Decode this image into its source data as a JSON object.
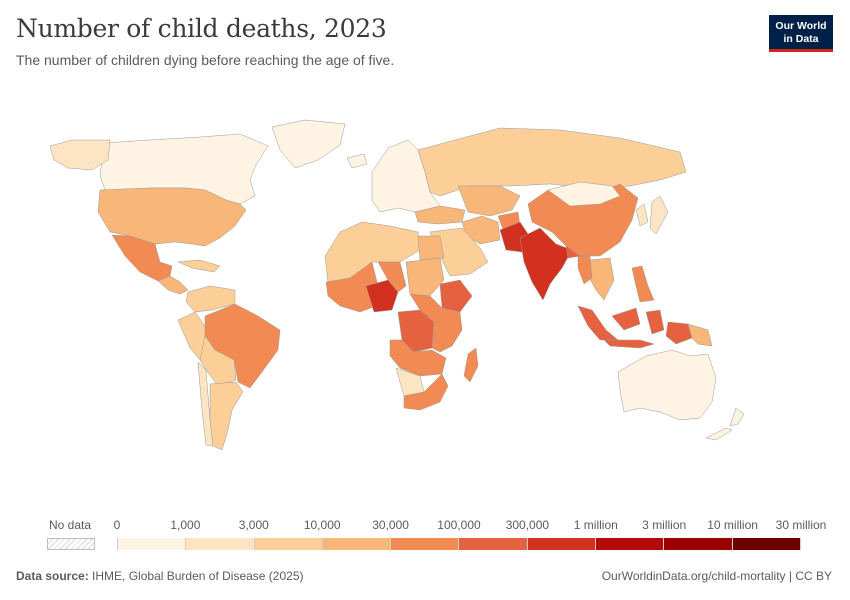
{
  "header": {
    "title": "Number of child deaths, 2023",
    "subtitle": "The number of children dying before reaching the age of five.",
    "logo_line1": "Our World",
    "logo_line2": "in Data"
  },
  "colors": {
    "bins": [
      "#fff3e3",
      "#fde5c4",
      "#fbcf97",
      "#f8b679",
      "#f18b53",
      "#e5613f",
      "#d2311f",
      "#b50a0a",
      "#9a0000",
      "#6e0000"
    ],
    "no_data": "#e6e6e6",
    "ocean": "#ffffff",
    "logo_bg": "#002147",
    "logo_accent": "#ce261e"
  },
  "legend": {
    "no_data_label": "No data",
    "tick_labels": [
      "0",
      "1,000",
      "3,000",
      "10,000",
      "30,000",
      "100,000",
      "300,000",
      "1 million",
      "3 million",
      "10 million",
      "30 million"
    ]
  },
  "map": {
    "regions": [
      {
        "name": "canada",
        "bin": 0
      },
      {
        "name": "alaska",
        "bin": 1
      },
      {
        "name": "greenland",
        "bin": 0
      },
      {
        "name": "united-states",
        "bin": 3
      },
      {
        "name": "mexico",
        "bin": 4
      },
      {
        "name": "central-america",
        "bin": 3
      },
      {
        "name": "caribbean",
        "bin": 2
      },
      {
        "name": "colombia-venezuela",
        "bin": 2
      },
      {
        "name": "peru",
        "bin": 2
      },
      {
        "name": "brazil",
        "bin": 4
      },
      {
        "name": "bolivia-paraguay",
        "bin": 2
      },
      {
        "name": "argentina",
        "bin": 2
      },
      {
        "name": "chile",
        "bin": 1
      },
      {
        "name": "iceland",
        "bin": 0
      },
      {
        "name": "europe",
        "bin": 0
      },
      {
        "name": "russia",
        "bin": 2
      },
      {
        "name": "turkey-caucasus",
        "bin": 3
      },
      {
        "name": "central-asia",
        "bin": 3
      },
      {
        "name": "iran",
        "bin": 3
      },
      {
        "name": "arabia",
        "bin": 2
      },
      {
        "name": "afghanistan",
        "bin": 4
      },
      {
        "name": "pakistan",
        "bin": 6
      },
      {
        "name": "india",
        "bin": 6
      },
      {
        "name": "bangladesh",
        "bin": 5
      },
      {
        "name": "china",
        "bin": 4
      },
      {
        "name": "mongolia",
        "bin": 0
      },
      {
        "name": "korea-japan",
        "bin": 1
      },
      {
        "name": "mainland-southeast-asia",
        "bin": 3
      },
      {
        "name": "myanmar",
        "bin": 4
      },
      {
        "name": "philippines",
        "bin": 4
      },
      {
        "name": "indonesia",
        "bin": 5
      },
      {
        "name": "papua-new-guinea",
        "bin": 3
      },
      {
        "name": "australia",
        "bin": 0
      },
      {
        "name": "new-zealand",
        "bin": 0
      },
      {
        "name": "north-africa",
        "bin": 2
      },
      {
        "name": "egypt",
        "bin": 3
      },
      {
        "name": "west-africa-sahel",
        "bin": 4
      },
      {
        "name": "nigeria",
        "bin": 6
      },
      {
        "name": "chad",
        "bin": 4
      },
      {
        "name": "sudan",
        "bin": 3
      },
      {
        "name": "ethiopia",
        "bin": 5
      },
      {
        "name": "dr-congo",
        "bin": 5
      },
      {
        "name": "east-africa",
        "bin": 4
      },
      {
        "name": "angola-zambia",
        "bin": 4
      },
      {
        "name": "namibia-botswana",
        "bin": 1
      },
      {
        "name": "southern-africa",
        "bin": 4
      },
      {
        "name": "madagascar",
        "bin": 4
      }
    ]
  },
  "footer": {
    "source_label": "Data source:",
    "source_text": "IHME, Global Burden of Disease (2025)",
    "right_text": "OurWorldinData.org/child-mortality | CC BY"
  }
}
